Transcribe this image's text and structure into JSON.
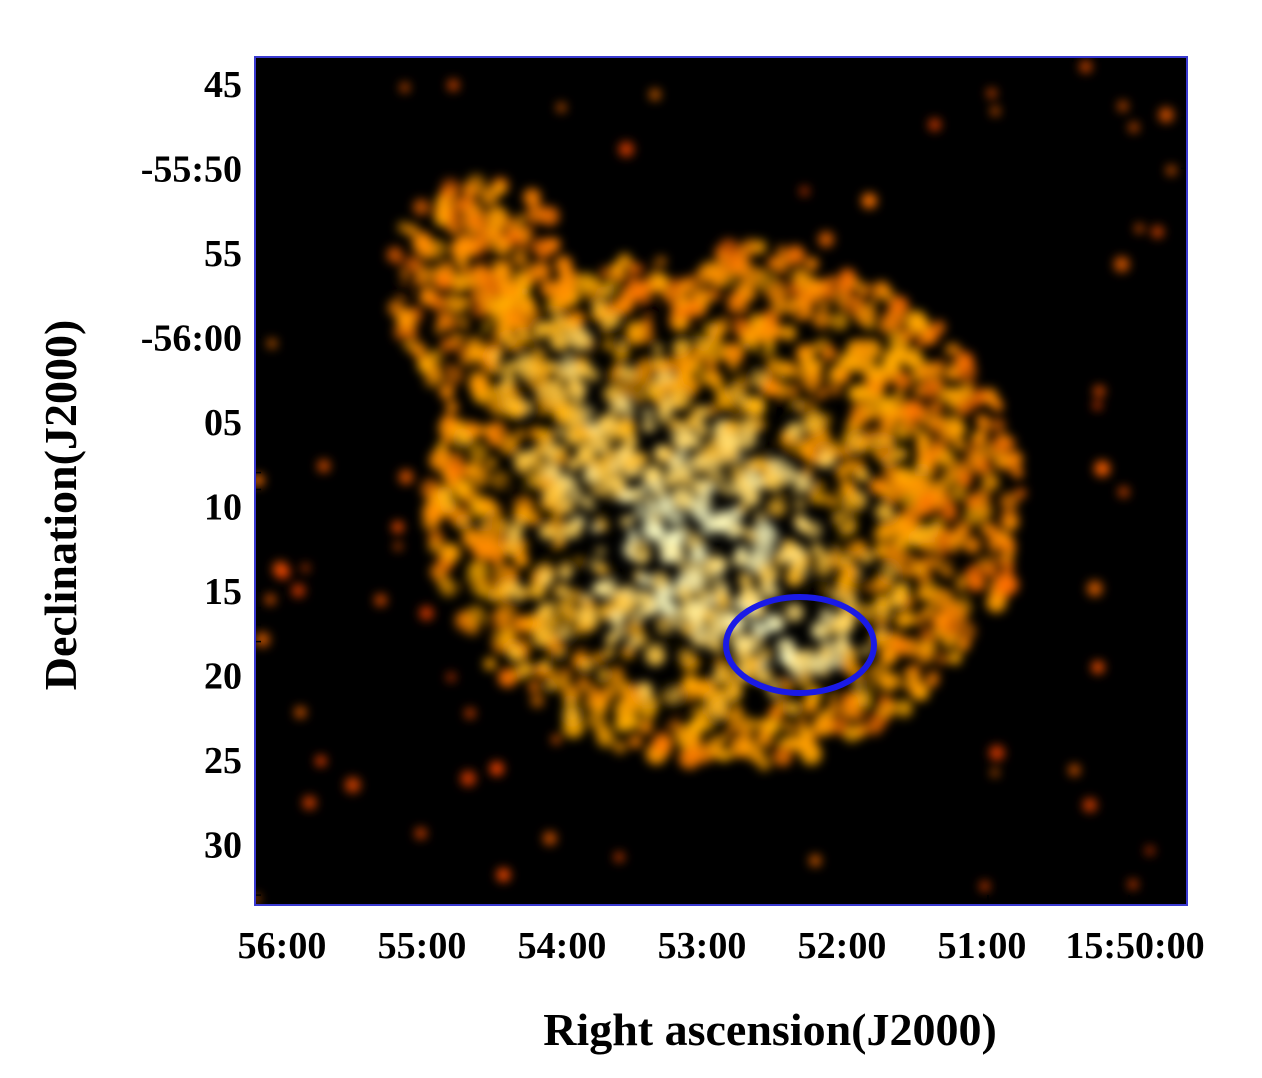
{
  "image": {
    "x_axis": {
      "label": "Right ascension(J2000)",
      "ticks": [
        "56:00",
        "55:00",
        "54:00",
        "53:00",
        "52:00",
        "51:00",
        "15:50:00"
      ]
    },
    "y_axis": {
      "label": "Declination(J2000)",
      "ticks": [
        "45",
        "-55:50",
        "55",
        "-56:00",
        "05",
        "10",
        "15",
        "20",
        "25",
        "30"
      ]
    }
  }
}
